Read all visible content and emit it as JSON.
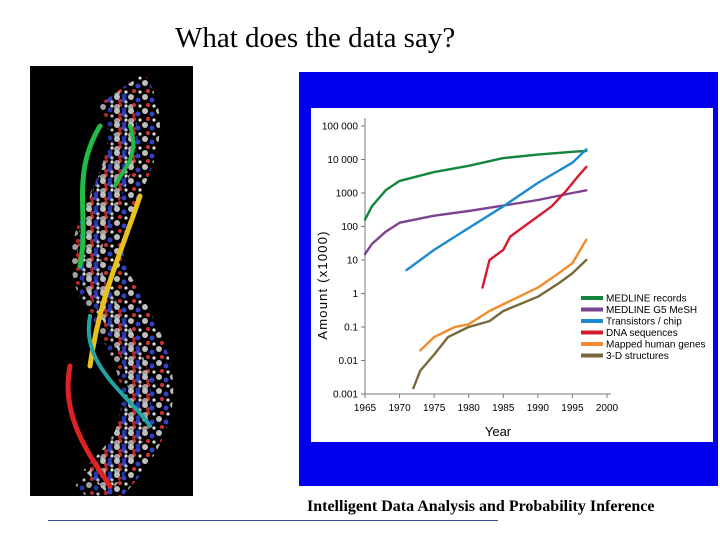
{
  "slide": {
    "title": "What does the data say?",
    "footer": "Intelligent Data Analysis and Probability Inference"
  },
  "image": {
    "name": "dna-double-helix-model"
  },
  "colors": {
    "panel_background": "#0000ee",
    "footer_rule": "#3b4aa0"
  },
  "chart_data": {
    "type": "line",
    "title": "",
    "xlabel": "Year",
    "ylabel": "Amount (x1000)",
    "y_scale": "log",
    "xlim": [
      1965,
      2000
    ],
    "ylim": [
      0.001,
      100000
    ],
    "x_ticks": [
      "1965",
      "1970",
      "1975",
      "1980",
      "1985",
      "1990",
      "1995",
      "2000"
    ],
    "y_ticks": [
      {
        "value": 100000,
        "label": "100 000"
      },
      {
        "value": 10000,
        "label": "10 000"
      },
      {
        "value": 1000,
        "label": "1000"
      },
      {
        "value": 100,
        "label": "100"
      },
      {
        "value": 10,
        "label": "10"
      },
      {
        "value": 1,
        "label": "1"
      },
      {
        "value": 0.1,
        "label": "0.1"
      },
      {
        "value": 0.01,
        "label": "0.01"
      },
      {
        "value": 0.001,
        "label": "0.001"
      }
    ],
    "legend_position": "bottom-right",
    "grid": false,
    "series": [
      {
        "name": "MEDLINE records",
        "color": "#13853d",
        "points": [
          [
            1965,
            160
          ],
          [
            1966,
            400
          ],
          [
            1968,
            1200
          ],
          [
            1970,
            2300
          ],
          [
            1975,
            4200
          ],
          [
            1980,
            6500
          ],
          [
            1985,
            11000
          ],
          [
            1990,
            14000
          ],
          [
            1995,
            17000
          ],
          [
            1997,
            18000
          ]
        ]
      },
      {
        "name": "MEDLINE G5 MeSH",
        "color": "#7b4390",
        "points": [
          [
            1965,
            15
          ],
          [
            1966,
            30
          ],
          [
            1968,
            70
          ],
          [
            1970,
            130
          ],
          [
            1975,
            210
          ],
          [
            1980,
            290
          ],
          [
            1985,
            420
          ],
          [
            1990,
            620
          ],
          [
            1995,
            1000
          ],
          [
            1997,
            1200
          ]
        ]
      },
      {
        "name": "Transistors / chip",
        "color": "#1c8ad0",
        "points": [
          [
            1971,
            5
          ],
          [
            1975,
            20
          ],
          [
            1980,
            90
          ],
          [
            1985,
            400
          ],
          [
            1990,
            2000
          ],
          [
            1995,
            8000
          ],
          [
            1997,
            20000
          ]
        ]
      },
      {
        "name": "DNA sequences",
        "color": "#d41b2c",
        "points": [
          [
            1982,
            1.5
          ],
          [
            1983,
            10
          ],
          [
            1985,
            20
          ],
          [
            1986,
            50
          ],
          [
            1988,
            100
          ],
          [
            1990,
            200
          ],
          [
            1992,
            400
          ],
          [
            1994,
            1100
          ],
          [
            1996,
            3500
          ],
          [
            1997,
            6000
          ]
        ]
      },
      {
        "name": "Mapped human genes",
        "color": "#f38b2c",
        "points": [
          [
            1973,
            0.02
          ],
          [
            1975,
            0.05
          ],
          [
            1978,
            0.1
          ],
          [
            1980,
            0.12
          ],
          [
            1983,
            0.3
          ],
          [
            1986,
            0.6
          ],
          [
            1990,
            1.5
          ],
          [
            1993,
            4
          ],
          [
            1995,
            8
          ],
          [
            1997,
            40
          ]
        ]
      },
      {
        "name": "3-D structures",
        "color": "#78683a",
        "points": [
          [
            1972,
            0.0015
          ],
          [
            1973,
            0.005
          ],
          [
            1975,
            0.015
          ],
          [
            1977,
            0.05
          ],
          [
            1980,
            0.1
          ],
          [
            1983,
            0.15
          ],
          [
            1985,
            0.3
          ],
          [
            1990,
            0.8
          ],
          [
            1993,
            2
          ],
          [
            1995,
            4
          ],
          [
            1997,
            10
          ]
        ]
      }
    ]
  }
}
